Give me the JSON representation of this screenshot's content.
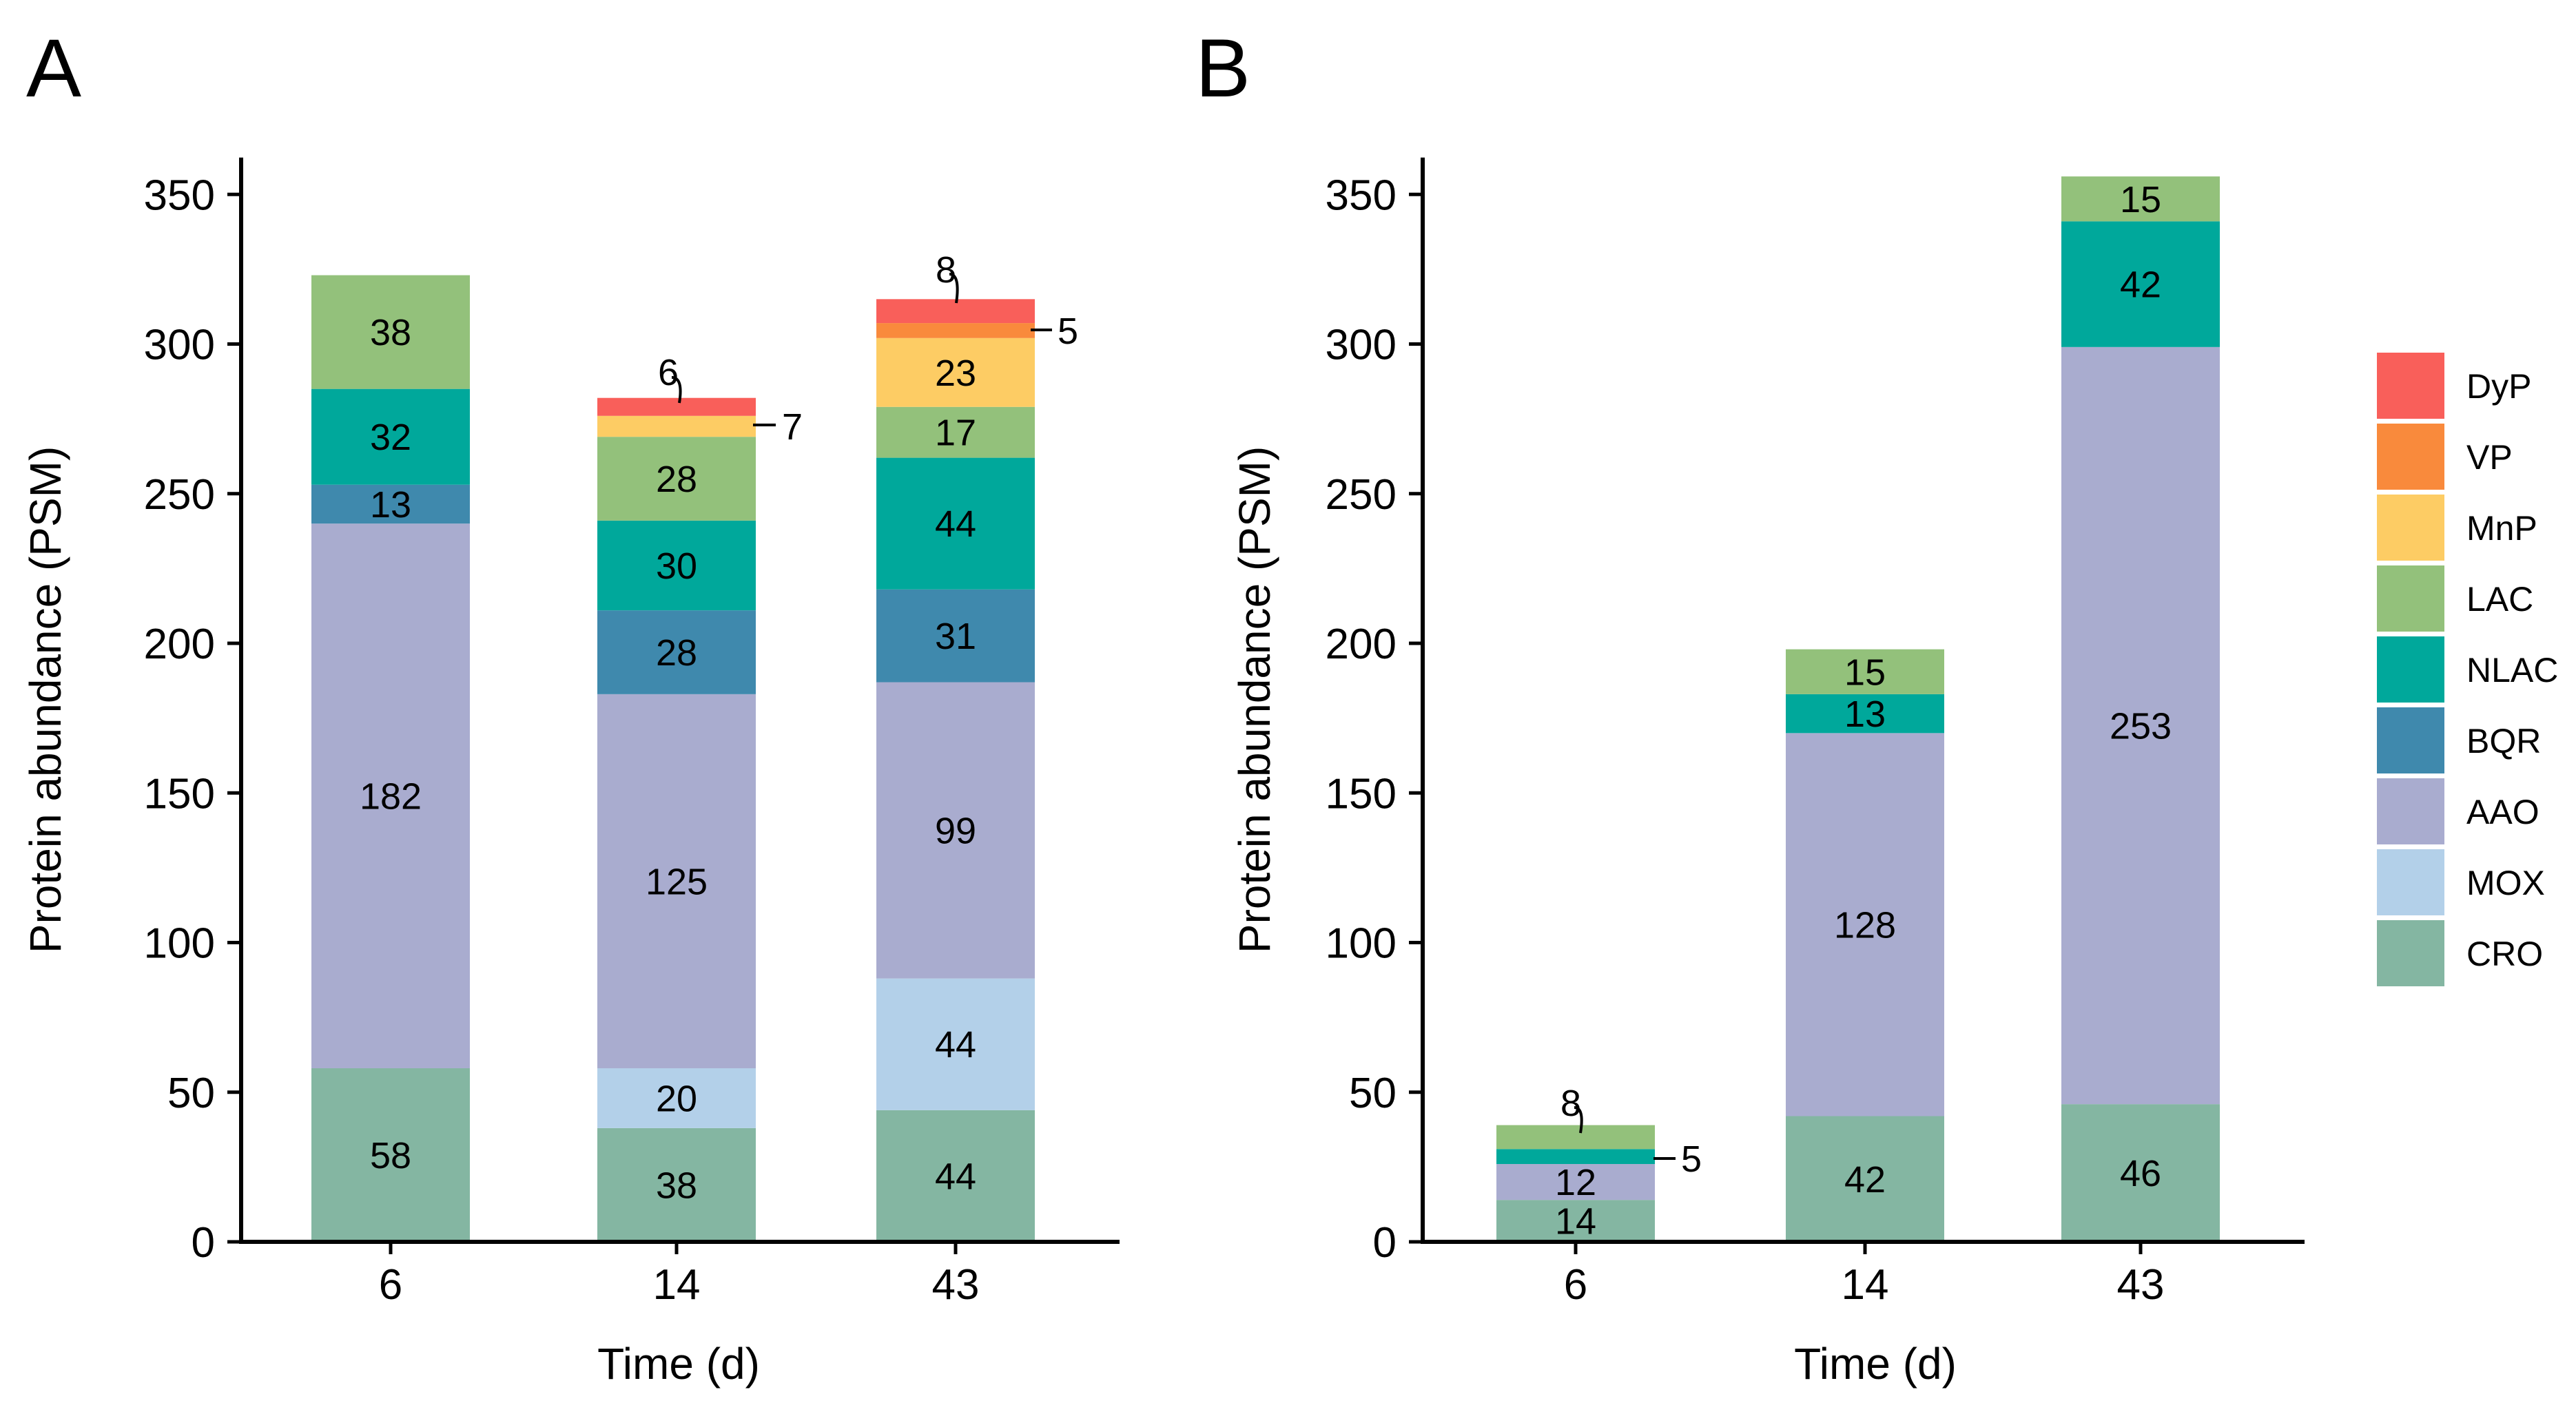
{
  "colors": {
    "DyP": "#f95f5a",
    "VP": "#f98a3c",
    "MnP": "#fdcc64",
    "LAC": "#93c17b",
    "NLAC": "#00a89b",
    "BQR": "#3f89ad",
    "AAO": "#a9accf",
    "MOX": "#b3d0e9",
    "CRO": "#84b6a2"
  },
  "legend": [
    "DyP",
    "VP",
    "MnP",
    "LAC",
    "NLAC",
    "BQR",
    "AAO",
    "MOX",
    "CRO"
  ],
  "chart_data": [
    {
      "type": "bar",
      "stacked": true,
      "panel": "A",
      "xlabel": "Time (d)",
      "ylabel": "Protein abundance (PSM)",
      "categories": [
        "6",
        "14",
        "43"
      ],
      "ylim": [
        0,
        360
      ],
      "yticks": [
        0,
        50,
        100,
        150,
        200,
        250,
        300,
        350
      ],
      "series": [
        {
          "name": "CRO",
          "values": [
            58,
            38,
            44
          ]
        },
        {
          "name": "MOX",
          "values": [
            0,
            20,
            44
          ]
        },
        {
          "name": "AAO",
          "values": [
            182,
            125,
            99
          ]
        },
        {
          "name": "BQR",
          "values": [
            13,
            28,
            31
          ]
        },
        {
          "name": "NLAC",
          "values": [
            32,
            30,
            44
          ]
        },
        {
          "name": "LAC",
          "values": [
            38,
            28,
            17
          ]
        },
        {
          "name": "MnP",
          "values": [
            0,
            7,
            23
          ]
        },
        {
          "name": "VP",
          "values": [
            0,
            0,
            5
          ]
        },
        {
          "name": "DyP",
          "values": [
            0,
            6,
            8
          ]
        }
      ]
    },
    {
      "type": "bar",
      "stacked": true,
      "panel": "B",
      "xlabel": "Time (d)",
      "ylabel": "Protein abundance (PSM)",
      "categories": [
        "6",
        "14",
        "43"
      ],
      "ylim": [
        0,
        360
      ],
      "yticks": [
        0,
        50,
        100,
        150,
        200,
        250,
        300,
        350
      ],
      "series": [
        {
          "name": "CRO",
          "values": [
            14,
            42,
            46
          ]
        },
        {
          "name": "MOX",
          "values": [
            0,
            0,
            0
          ]
        },
        {
          "name": "AAO",
          "values": [
            12,
            128,
            253
          ]
        },
        {
          "name": "BQR",
          "values": [
            0,
            0,
            0
          ]
        },
        {
          "name": "NLAC",
          "values": [
            5,
            13,
            42
          ]
        },
        {
          "name": "LAC",
          "values": [
            8,
            15,
            15
          ]
        },
        {
          "name": "MnP",
          "values": [
            0,
            0,
            0
          ]
        },
        {
          "name": "VP",
          "values": [
            0,
            0,
            0
          ]
        },
        {
          "name": "DyP",
          "values": [
            0,
            0,
            0
          ]
        }
      ]
    }
  ]
}
